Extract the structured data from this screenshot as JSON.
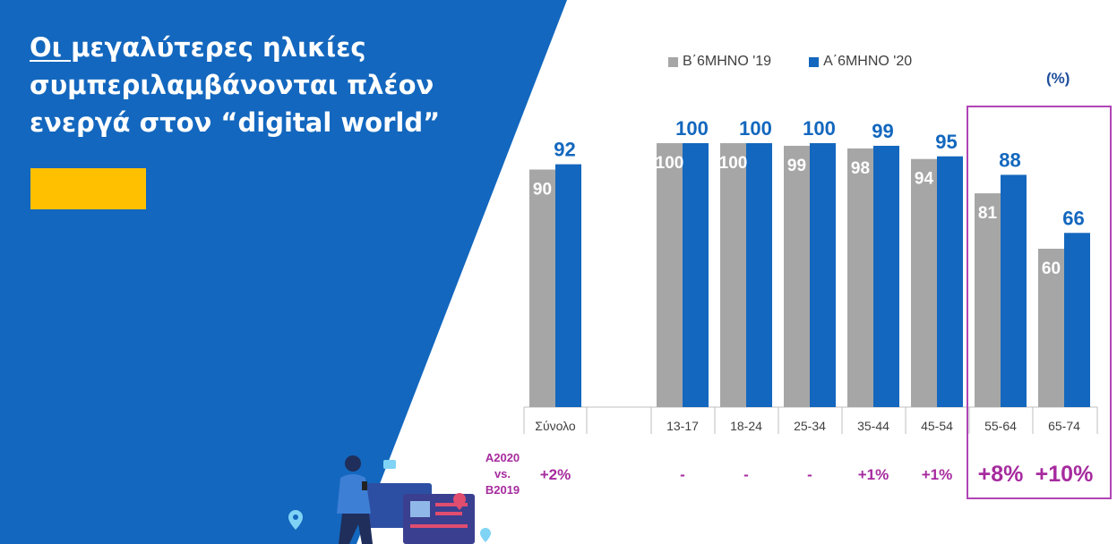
{
  "title": {
    "line1_underlined": "Οι ",
    "line1_rest": "μεγαλύτερες ηλικίες",
    "line2": "συμπεριλαμβάνονται πλέον",
    "line3": "ενεργά στον “digital world”"
  },
  "unit_label": "(%)",
  "colors": {
    "background_panel": "#1367BE",
    "accent": "#FFC000",
    "series_2019": "#A6A6A6",
    "series_2020": "#1367BE",
    "highlight": "#B144B6",
    "diff_text": "#A62B9E"
  },
  "legend": [
    {
      "label": "Β΄6ΜΗΝΟ '19",
      "color": "#A6A6A6"
    },
    {
      "label": "Α΄6ΜΗΝΟ '20",
      "color": "#1367BE"
    }
  ],
  "comparison": {
    "label_line1": "A2020",
    "label_line2": "vs.",
    "label_line3": "B2019",
    "values": [
      "+2%",
      "-",
      "-",
      "-",
      "+1%",
      "+1%",
      "+8%",
      "+10%"
    ],
    "highlighted": [
      false,
      false,
      false,
      false,
      false,
      false,
      true,
      true
    ]
  },
  "chart_data": {
    "type": "bar",
    "categories": [
      "Σύνολο",
      "13-17",
      "18-24",
      "25-34",
      "35-44",
      "45-54",
      "55-64",
      "65-74"
    ],
    "series": [
      {
        "name": "Β΄6ΜΗΝΟ '19",
        "values": [
          90,
          100,
          100,
          99,
          98,
          94,
          81,
          60
        ]
      },
      {
        "name": "Α΄6ΜΗΝΟ '20",
        "values": [
          92,
          100,
          100,
          100,
          99,
          95,
          88,
          66
        ]
      }
    ],
    "ylim": [
      0,
      100
    ],
    "grid": false,
    "legend_position": "top",
    "highlighted_categories": [
      "55-64",
      "65-74"
    ]
  }
}
